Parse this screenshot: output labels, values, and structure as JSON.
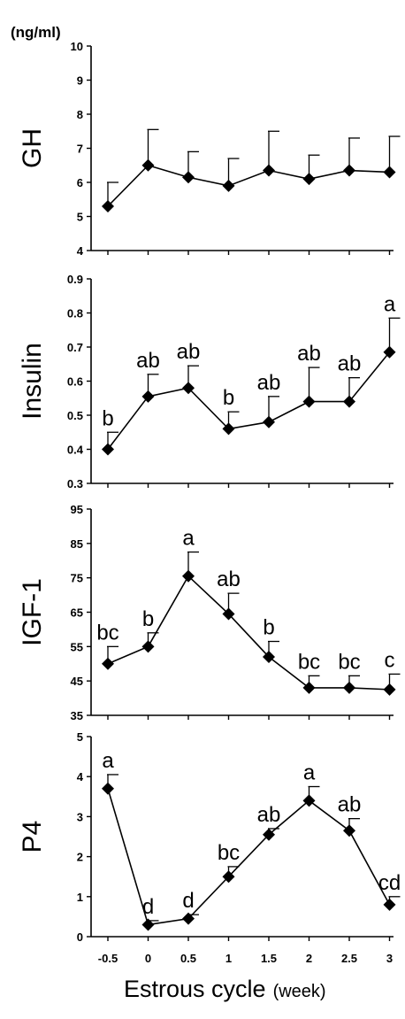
{
  "unit_label": "(ng/ml)",
  "x_title": "Estrous cycle",
  "x_unit": "(week)",
  "x_ticks": [
    "-0.5",
    "0",
    "0.5",
    "1",
    "1.5",
    "2",
    "2.5",
    "3"
  ],
  "chart_data": [
    {
      "type": "line",
      "ylabel": "GH",
      "ylim": [
        4,
        10
      ],
      "yticks": [
        "4",
        "5",
        "6",
        "7",
        "8",
        "9",
        "10"
      ],
      "x": [
        -0.5,
        0,
        0.5,
        1,
        1.5,
        2,
        2.5,
        3
      ],
      "values": [
        5.3,
        6.5,
        6.15,
        5.9,
        6.35,
        6.1,
        6.35,
        6.3
      ],
      "error": [
        0.7,
        1.05,
        0.75,
        0.8,
        1.15,
        0.7,
        0.95,
        1.05
      ],
      "labels": [
        "",
        "",
        "",
        "",
        "",
        "",
        "",
        ""
      ]
    },
    {
      "type": "line",
      "ylabel": "Insulin",
      "ylim": [
        0.3,
        0.9
      ],
      "yticks": [
        "0.3",
        "0.4",
        "0.5",
        "0.6",
        "0.7",
        "0.8",
        "0.9"
      ],
      "x": [
        -0.5,
        0,
        0.5,
        1,
        1.5,
        2,
        2.5,
        3
      ],
      "values": [
        0.4,
        0.555,
        0.58,
        0.46,
        0.48,
        0.54,
        0.54,
        0.685
      ],
      "error": [
        0.05,
        0.065,
        0.065,
        0.05,
        0.075,
        0.1,
        0.07,
        0.1
      ],
      "labels": [
        "b",
        "ab",
        "ab",
        "b",
        "ab",
        "ab",
        "ab",
        "a"
      ]
    },
    {
      "type": "line",
      "ylabel": "IGF-1",
      "ylim": [
        35,
        95
      ],
      "yticks": [
        "35",
        "45",
        "55",
        "65",
        "75",
        "85",
        "95"
      ],
      "x": [
        -0.5,
        0,
        0.5,
        1,
        1.5,
        2,
        2.5,
        3
      ],
      "values": [
        50,
        55,
        75.5,
        64.5,
        52,
        43,
        43,
        42.5
      ],
      "error": [
        5,
        4,
        7,
        6,
        4.5,
        3.5,
        3.5,
        4.5
      ],
      "labels": [
        "bc",
        "b",
        "a",
        "ab",
        "b",
        "bc",
        "bc",
        "c"
      ]
    },
    {
      "type": "line",
      "ylabel": "P4",
      "ylim": [
        0,
        5
      ],
      "yticks": [
        "0",
        "1",
        "2",
        "3",
        "4",
        "5"
      ],
      "x": [
        -0.5,
        0,
        0.5,
        1,
        1.5,
        2,
        2.5,
        3
      ],
      "values": [
        3.7,
        0.3,
        0.45,
        1.5,
        2.55,
        3.4,
        2.65,
        0.8
      ],
      "error": [
        0.35,
        0.1,
        0.1,
        0.25,
        0.15,
        0.35,
        0.3,
        0.2
      ],
      "labels": [
        "a",
        "d",
        "d",
        "bc",
        "ab",
        "a",
        "ab",
        "cd"
      ]
    }
  ]
}
